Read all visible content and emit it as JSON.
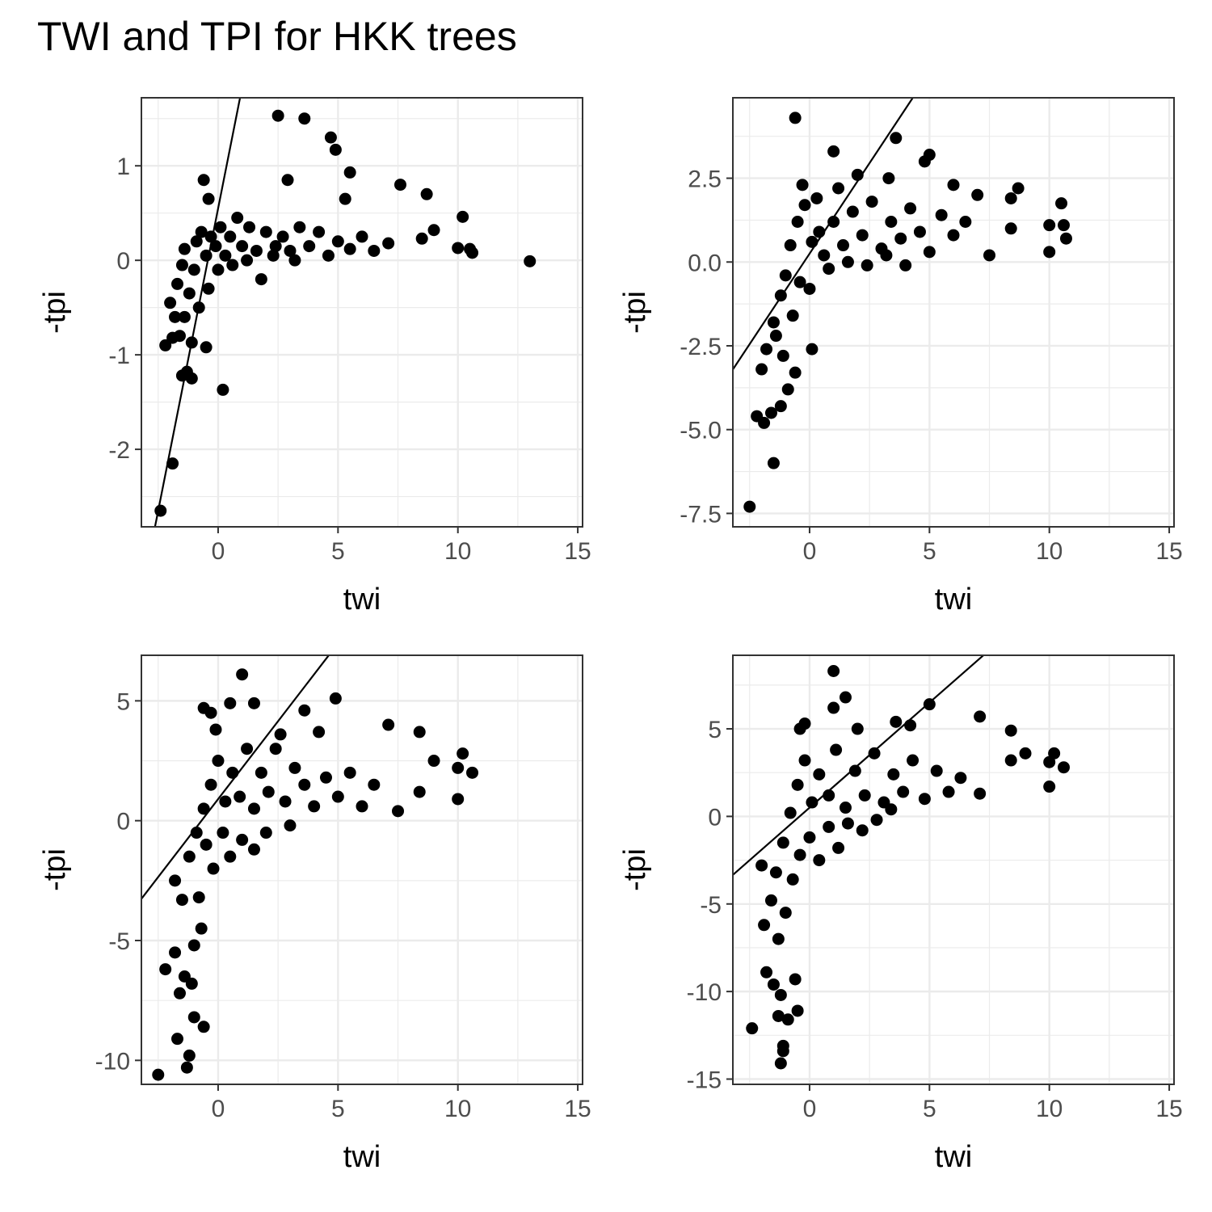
{
  "title": "TWI and TPI for HKK trees",
  "colors": {
    "points": "#000000",
    "line": "#000000",
    "grid": "#ebebeb",
    "border": "#333333"
  },
  "chart_data": [
    {
      "type": "scatter",
      "xlabel": "twi",
      "ylabel": "-tpi",
      "xlim": [
        -3.2,
        15.2
      ],
      "ylim": [
        -2.82,
        1.72
      ],
      "xticks": [
        0,
        5,
        10,
        15
      ],
      "xtick_labels": [
        "0",
        "5",
        "10",
        "15"
      ],
      "yticks": [
        -2,
        -1,
        0,
        1
      ],
      "ytick_labels": [
        "-2",
        "-1",
        "0",
        "1"
      ],
      "grid": true,
      "fit_line": {
        "slope": 1.28,
        "intercept": 0.55
      },
      "points": [
        [
          2.5,
          1.53
        ],
        [
          3.6,
          1.5
        ],
        [
          4.7,
          1.3
        ],
        [
          4.9,
          1.17
        ],
        [
          5.5,
          0.93
        ],
        [
          7.6,
          0.8
        ],
        [
          8.7,
          0.7
        ],
        [
          10.2,
          0.46
        ],
        [
          13.0,
          -0.01
        ],
        [
          9.0,
          0.32
        ],
        [
          10.5,
          0.12
        ],
        [
          10.0,
          0.13
        ],
        [
          10.6,
          0.08
        ],
        [
          8.5,
          0.23
        ],
        [
          7.1,
          0.18
        ],
        [
          -0.6,
          0.85
        ],
        [
          -0.4,
          0.65
        ],
        [
          2.9,
          0.85
        ],
        [
          5.3,
          0.65
        ],
        [
          -2.4,
          -2.65
        ],
        [
          -1.9,
          -2.15
        ],
        [
          -1.5,
          -1.22
        ],
        [
          -1.3,
          -1.18
        ],
        [
          -1.1,
          -1.25
        ],
        [
          -0.5,
          -0.92
        ],
        [
          -1.1,
          -0.87
        ],
        [
          0.2,
          -1.37
        ],
        [
          -2.2,
          -0.9
        ],
        [
          -1.9,
          -0.82
        ],
        [
          -1.6,
          -0.8
        ],
        [
          -2.0,
          -0.45
        ],
        [
          -1.7,
          -0.25
        ],
        [
          -1.5,
          -0.05
        ],
        [
          -1.4,
          0.12
        ],
        [
          -1.2,
          -0.35
        ],
        [
          -1.0,
          -0.1
        ],
        [
          -0.9,
          0.2
        ],
        [
          -0.7,
          0.3
        ],
        [
          -0.5,
          0.05
        ],
        [
          -0.3,
          0.25
        ],
        [
          -0.1,
          0.15
        ],
        [
          0.1,
          0.35
        ],
        [
          0.3,
          0.05
        ],
        [
          0.5,
          0.25
        ],
        [
          0.8,
          0.45
        ],
        [
          1.0,
          0.15
        ],
        [
          1.3,
          0.35
        ],
        [
          1.6,
          0.1
        ],
        [
          2.0,
          0.3
        ],
        [
          2.3,
          0.05
        ],
        [
          2.7,
          0.25
        ],
        [
          3.0,
          0.1
        ],
        [
          3.4,
          0.35
        ],
        [
          3.8,
          0.15
        ],
        [
          4.2,
          0.3
        ],
        [
          4.6,
          0.05
        ],
        [
          5.0,
          0.2
        ],
        [
          5.5,
          0.12
        ],
        [
          6.0,
          0.25
        ],
        [
          6.5,
          0.1
        ],
        [
          -1.8,
          -0.6
        ],
        [
          -1.4,
          -0.6
        ],
        [
          -0.8,
          -0.5
        ],
        [
          -0.4,
          -0.3
        ],
        [
          0.0,
          -0.1
        ],
        [
          0.6,
          -0.05
        ],
        [
          1.2,
          0.0
        ],
        [
          1.8,
          -0.2
        ],
        [
          2.4,
          0.15
        ],
        [
          3.2,
          0.0
        ]
      ]
    },
    {
      "type": "scatter",
      "xlabel": "twi",
      "ylabel": "-tpi",
      "xlim": [
        -3.2,
        15.2
      ],
      "ylim": [
        -7.9,
        4.9
      ],
      "xticks": [
        0,
        5,
        10,
        15
      ],
      "xtick_labels": [
        "0",
        "5",
        "10",
        "15"
      ],
      "yticks": [
        -7.5,
        -5.0,
        -2.5,
        0.0,
        2.5
      ],
      "ytick_labels": [
        "-7.5",
        "-5.0",
        "-2.5",
        "0.0",
        "2.5"
      ],
      "grid": true,
      "fit_line": {
        "slope": 1.08,
        "intercept": 0.25
      },
      "points": [
        [
          -0.6,
          4.3
        ],
        [
          3.6,
          3.7
        ],
        [
          1.0,
          3.3
        ],
        [
          3.3,
          2.5
        ],
        [
          4.8,
          3.0
        ],
        [
          5.0,
          3.2
        ],
        [
          8.7,
          2.2
        ],
        [
          8.4,
          1.9
        ],
        [
          10.5,
          1.75
        ],
        [
          10.6,
          1.1
        ],
        [
          10.7,
          0.7
        ],
        [
          10.0,
          1.1
        ],
        [
          10.0,
          0.3
        ],
        [
          8.4,
          1.0
        ],
        [
          7.5,
          0.2
        ],
        [
          7.0,
          2.0
        ],
        [
          6.0,
          2.3
        ],
        [
          -2.5,
          -7.3
        ],
        [
          -1.5,
          -6.0
        ],
        [
          -2.2,
          -4.6
        ],
        [
          -1.9,
          -4.8
        ],
        [
          -1.6,
          -4.5
        ],
        [
          -1.2,
          -4.3
        ],
        [
          -0.9,
          -3.8
        ],
        [
          -0.6,
          -3.3
        ],
        [
          -2.0,
          -3.2
        ],
        [
          -1.8,
          -2.6
        ],
        [
          -1.5,
          -1.8
        ],
        [
          -1.2,
          -1.0
        ],
        [
          -1.0,
          -0.4
        ],
        [
          -0.8,
          0.5
        ],
        [
          -0.5,
          1.2
        ],
        [
          -0.2,
          1.7
        ],
        [
          0.1,
          0.6
        ],
        [
          0.3,
          1.9
        ],
        [
          0.1,
          -2.6
        ],
        [
          0.6,
          0.2
        ],
        [
          1.0,
          1.2
        ],
        [
          1.4,
          0.5
        ],
        [
          1.8,
          1.5
        ],
        [
          2.2,
          0.8
        ],
        [
          2.6,
          1.8
        ],
        [
          3.0,
          0.4
        ],
        [
          3.4,
          1.2
        ],
        [
          3.8,
          0.7
        ],
        [
          4.2,
          1.6
        ],
        [
          4.6,
          0.9
        ],
        [
          5.0,
          0.3
        ],
        [
          5.5,
          1.4
        ],
        [
          6.0,
          0.8
        ],
        [
          6.5,
          1.2
        ],
        [
          -1.4,
          -2.2
        ],
        [
          -1.1,
          -2.8
        ],
        [
          -0.7,
          -1.6
        ],
        [
          -0.4,
          -0.6
        ],
        [
          0.0,
          -0.8
        ],
        [
          0.4,
          0.9
        ],
        [
          0.8,
          -0.2
        ],
        [
          1.6,
          0.0
        ],
        [
          2.4,
          -0.1
        ],
        [
          3.2,
          0.2
        ],
        [
          4.0,
          -0.1
        ],
        [
          -0.3,
          2.3
        ],
        [
          2.0,
          2.6
        ],
        [
          1.2,
          2.2
        ]
      ]
    },
    {
      "type": "scatter",
      "xlabel": "twi",
      "ylabel": "-tpi",
      "xlim": [
        -3.2,
        15.2
      ],
      "ylim": [
        -11.0,
        6.9
      ],
      "xticks": [
        0,
        5,
        10,
        15
      ],
      "xtick_labels": [
        "0",
        "5",
        "10",
        "15"
      ],
      "yticks": [
        -10,
        -5,
        0,
        5
      ],
      "ytick_labels": [
        "-10",
        "-5",
        "0",
        "5"
      ],
      "grid": true,
      "fit_line": {
        "slope": 1.3,
        "intercept": 0.9
      },
      "points": [
        [
          1.0,
          6.1
        ],
        [
          0.5,
          4.9
        ],
        [
          1.5,
          4.9
        ],
        [
          -0.6,
          4.7
        ],
        [
          -0.3,
          4.5
        ],
        [
          4.9,
          5.1
        ],
        [
          3.6,
          4.6
        ],
        [
          7.1,
          4.0
        ],
        [
          8.4,
          3.7
        ],
        [
          10.2,
          2.8
        ],
        [
          10.6,
          2.0
        ],
        [
          10.0,
          2.2
        ],
        [
          10.0,
          0.9
        ],
        [
          9.0,
          2.5
        ],
        [
          8.4,
          1.2
        ],
        [
          7.5,
          0.4
        ],
        [
          -2.5,
          -10.6
        ],
        [
          -1.3,
          -10.3
        ],
        [
          -1.2,
          -9.8
        ],
        [
          -1.7,
          -9.1
        ],
        [
          -0.6,
          -8.6
        ],
        [
          -1.0,
          -8.2
        ],
        [
          -2.2,
          -6.2
        ],
        [
          -1.8,
          -5.5
        ],
        [
          -1.4,
          -6.5
        ],
        [
          -1.0,
          -5.2
        ],
        [
          -0.7,
          -4.5
        ],
        [
          -1.8,
          -2.5
        ],
        [
          -1.5,
          -3.3
        ],
        [
          -1.2,
          -1.5
        ],
        [
          -0.9,
          -0.5
        ],
        [
          -0.6,
          0.5
        ],
        [
          -0.3,
          1.5
        ],
        [
          0.0,
          2.5
        ],
        [
          0.3,
          0.8
        ],
        [
          0.6,
          2.0
        ],
        [
          0.9,
          1.0
        ],
        [
          1.2,
          3.0
        ],
        [
          1.5,
          0.5
        ],
        [
          1.8,
          2.0
        ],
        [
          2.1,
          1.2
        ],
        [
          2.4,
          3.0
        ],
        [
          2.8,
          0.8
        ],
        [
          3.2,
          2.2
        ],
        [
          3.6,
          1.5
        ],
        [
          4.0,
          0.6
        ],
        [
          4.5,
          1.8
        ],
        [
          5.0,
          1.0
        ],
        [
          5.5,
          2.0
        ],
        [
          6.0,
          0.6
        ],
        [
          6.5,
          1.5
        ],
        [
          -1.6,
          -7.2
        ],
        [
          -1.1,
          -6.8
        ],
        [
          -0.8,
          -3.2
        ],
        [
          -0.5,
          -1.0
        ],
        [
          -0.2,
          -2.0
        ],
        [
          0.2,
          -0.5
        ],
        [
          0.5,
          -1.5
        ],
        [
          1.0,
          -0.8
        ],
        [
          1.5,
          -1.2
        ],
        [
          2.0,
          -0.5
        ],
        [
          3.0,
          -0.2
        ],
        [
          4.2,
          3.7
        ],
        [
          2.6,
          3.6
        ],
        [
          -0.1,
          3.8
        ]
      ]
    },
    {
      "type": "scatter",
      "xlabel": "twi",
      "ylabel": "-tpi",
      "xlim": [
        -3.2,
        15.2
      ],
      "ylim": [
        -15.3,
        9.2
      ],
      "xticks": [
        0,
        5,
        10,
        15
      ],
      "xtick_labels": [
        "0",
        "5",
        "10",
        "15"
      ],
      "yticks": [
        -15,
        -10,
        -5,
        0,
        5
      ],
      "ytick_labels": [
        "-15",
        "-10",
        "-5",
        "0",
        "5"
      ],
      "grid": true,
      "fit_line": {
        "slope": 1.2,
        "intercept": 0.5
      },
      "points": [
        [
          1.0,
          8.3
        ],
        [
          1.5,
          6.8
        ],
        [
          1.0,
          6.2
        ],
        [
          -0.4,
          5.0
        ],
        [
          -0.2,
          5.3
        ],
        [
          5.0,
          6.4
        ],
        [
          7.1,
          5.7
        ],
        [
          8.4,
          4.9
        ],
        [
          10.2,
          3.6
        ],
        [
          10.6,
          2.8
        ],
        [
          10.0,
          3.1
        ],
        [
          10.0,
          1.7
        ],
        [
          9.0,
          3.6
        ],
        [
          8.4,
          3.2
        ],
        [
          7.1,
          1.3
        ],
        [
          -2.4,
          -12.1
        ],
        [
          -1.2,
          -14.1
        ],
        [
          -1.1,
          -13.4
        ],
        [
          -1.1,
          -13.1
        ],
        [
          -1.3,
          -11.4
        ],
        [
          -1.2,
          -10.2
        ],
        [
          -0.9,
          -11.6
        ],
        [
          -1.8,
          -8.9
        ],
        [
          -1.5,
          -9.6
        ],
        [
          -0.6,
          -9.3
        ],
        [
          -0.5,
          -11.1
        ],
        [
          -1.9,
          -6.2
        ],
        [
          -1.6,
          -4.8
        ],
        [
          -1.4,
          -3.2
        ],
        [
          -2.0,
          -2.8
        ],
        [
          -1.1,
          -1.5
        ],
        [
          -0.8,
          0.2
        ],
        [
          -0.5,
          1.8
        ],
        [
          -0.2,
          3.2
        ],
        [
          0.1,
          0.8
        ],
        [
          0.4,
          2.4
        ],
        [
          0.8,
          1.2
        ],
        [
          1.1,
          3.8
        ],
        [
          1.5,
          0.5
        ],
        [
          1.9,
          2.6
        ],
        [
          2.3,
          1.2
        ],
        [
          2.7,
          3.6
        ],
        [
          3.1,
          0.8
        ],
        [
          3.5,
          2.4
        ],
        [
          3.9,
          1.4
        ],
        [
          4.3,
          3.2
        ],
        [
          4.8,
          1.0
        ],
        [
          5.3,
          2.6
        ],
        [
          5.8,
          1.4
        ],
        [
          6.3,
          2.2
        ],
        [
          -1.3,
          -7.0
        ],
        [
          -1.0,
          -5.5
        ],
        [
          -0.7,
          -3.6
        ],
        [
          -0.4,
          -2.2
        ],
        [
          0.0,
          -1.2
        ],
        [
          0.4,
          -2.5
        ],
        [
          0.8,
          -0.6
        ],
        [
          1.2,
          -1.8
        ],
        [
          1.6,
          -0.4
        ],
        [
          2.2,
          -0.8
        ],
        [
          2.8,
          -0.2
        ],
        [
          3.4,
          0.4
        ],
        [
          4.2,
          5.2
        ],
        [
          2.0,
          5.0
        ],
        [
          3.6,
          5.4
        ]
      ]
    }
  ]
}
